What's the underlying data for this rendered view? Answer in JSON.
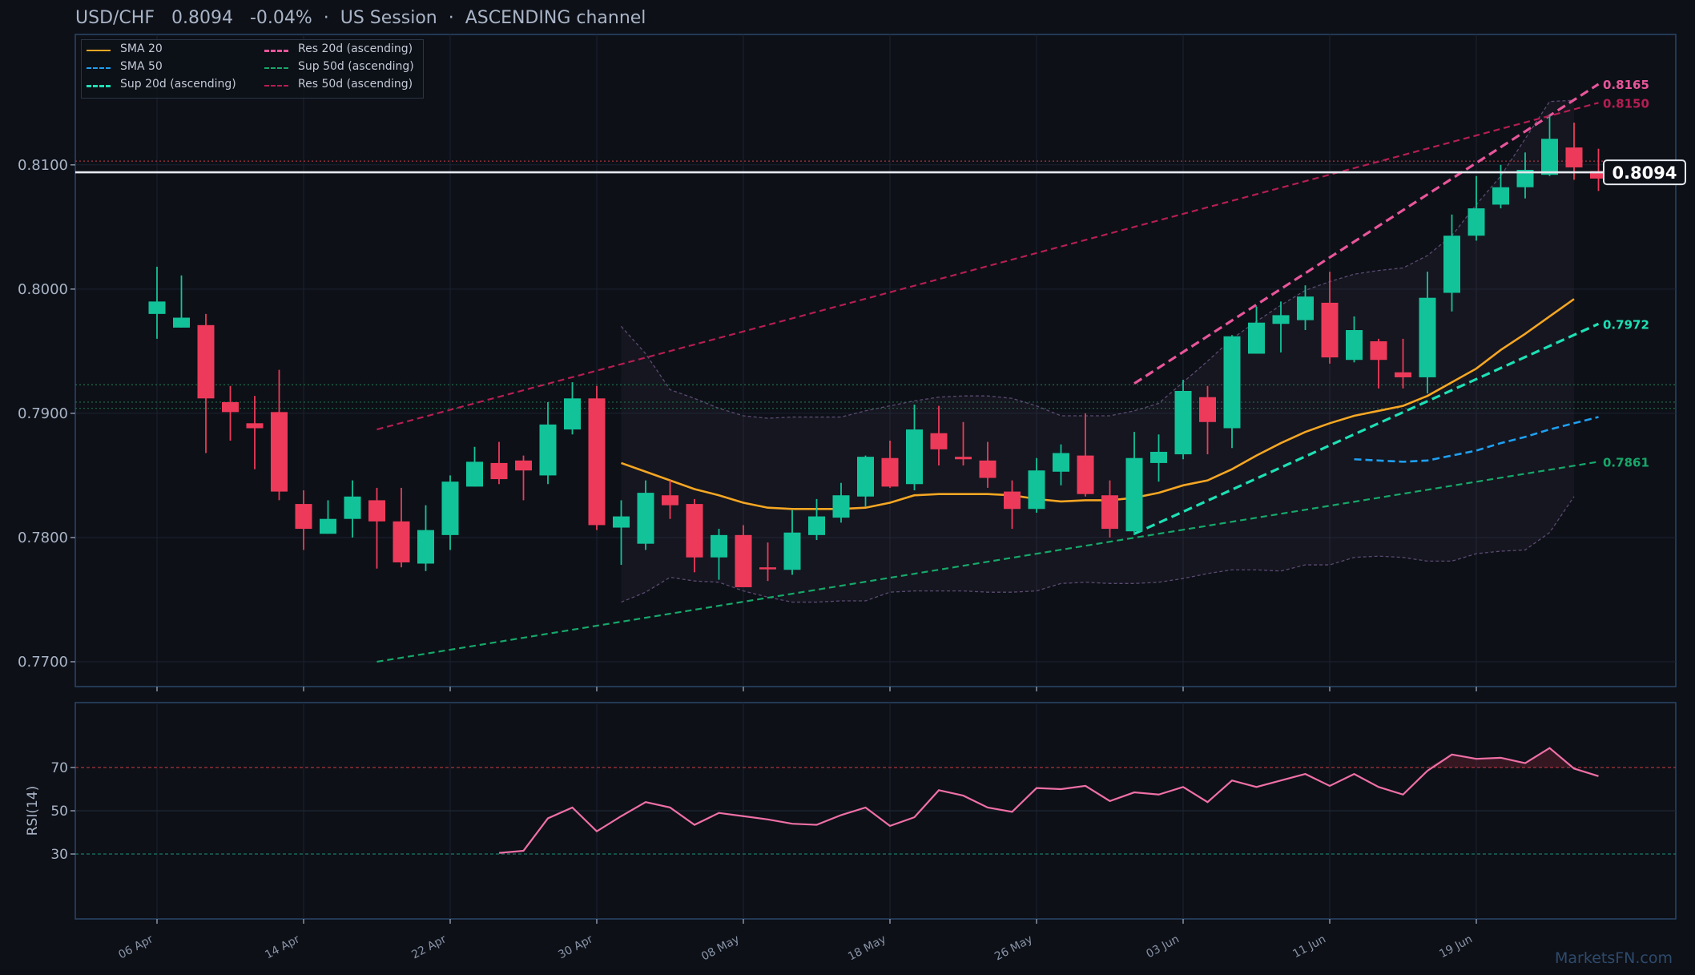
{
  "header": {
    "symbol": "USD/CHF",
    "price": "0.8094",
    "change": "-0.04%",
    "session": "US Session",
    "channel": "ASCENDING channel"
  },
  "watermark": "MarketsFN.com",
  "legend": [
    {
      "label": "SMA 20",
      "color": "#f5a623",
      "style": "solid"
    },
    {
      "label": "SMA 50",
      "color": "#1e9ff2",
      "style": "dashed"
    },
    {
      "label": "Sup 20d (ascending)",
      "color": "#1de0b5",
      "style": "dashed"
    },
    {
      "label": "Res 20d (ascending)",
      "color": "#e8559a",
      "style": "dashed"
    },
    {
      "label": "Sup 50d (ascending)",
      "color": "#16a86a",
      "style": "dashed"
    },
    {
      "label": "Res 50d (ascending)",
      "color": "#b51e52",
      "style": "dashed"
    }
  ],
  "colors": {
    "up": "#12c39a",
    "down": "#ee3a5a",
    "background": "#0d1017",
    "axis": "#2b4668",
    "text": "#a9b4c6"
  },
  "chart_data": {
    "type": "candlestick",
    "x_ticks": [
      "06 Apr",
      "14 Apr",
      "22 Apr",
      "30 Apr",
      "08 May",
      "18 May",
      "26 May",
      "03 Jun",
      "11 Jun",
      "19 Jun"
    ],
    "x_tick_index": [
      0,
      6,
      12,
      18,
      24,
      30,
      36,
      42,
      48,
      54
    ],
    "ylim": [
      0.768,
      0.8205
    ],
    "y_ticks": [
      "0.7700",
      "0.7800",
      "0.7900",
      "0.8000",
      "0.8100"
    ],
    "y_tick_values": [
      0.77,
      0.78,
      0.79,
      0.8,
      0.81
    ],
    "last_price": 0.8094,
    "last_price_label": "0.8094",
    "horizontal_levels": [
      {
        "value": 0.8103,
        "color": "#a8333d",
        "style": "dotted"
      },
      {
        "value": 0.7923,
        "color": "#1f6e4a",
        "style": "dotted"
      },
      {
        "value": 0.7909,
        "color": "#1f6e4a",
        "style": "dotted"
      },
      {
        "value": 0.7904,
        "color": "#1f6e4a",
        "style": "dotted"
      }
    ],
    "candles": [
      {
        "o": 0.798,
        "h": 0.8018,
        "l": 0.796,
        "c": 0.799
      },
      {
        "o": 0.7969,
        "h": 0.8011,
        "l": 0.7969,
        "c": 0.7977
      },
      {
        "o": 0.7971,
        "h": 0.798,
        "l": 0.7868,
        "c": 0.7912
      },
      {
        "o": 0.7909,
        "h": 0.7922,
        "l": 0.7878,
        "c": 0.7901
      },
      {
        "o": 0.7892,
        "h": 0.7914,
        "l": 0.7855,
        "c": 0.7888
      },
      {
        "o": 0.7901,
        "h": 0.7935,
        "l": 0.783,
        "c": 0.7837
      },
      {
        "o": 0.7827,
        "h": 0.7838,
        "l": 0.779,
        "c": 0.7807
      },
      {
        "o": 0.7803,
        "h": 0.783,
        "l": 0.7803,
        "c": 0.7815
      },
      {
        "o": 0.7815,
        "h": 0.7846,
        "l": 0.78,
        "c": 0.7833
      },
      {
        "o": 0.783,
        "h": 0.784,
        "l": 0.7775,
        "c": 0.7813
      },
      {
        "o": 0.7813,
        "h": 0.784,
        "l": 0.7776,
        "c": 0.778
      },
      {
        "o": 0.7779,
        "h": 0.7826,
        "l": 0.7773,
        "c": 0.7806
      },
      {
        "o": 0.7802,
        "h": 0.785,
        "l": 0.779,
        "c": 0.7845
      },
      {
        "o": 0.7841,
        "h": 0.7873,
        "l": 0.7841,
        "c": 0.7861
      },
      {
        "o": 0.786,
        "h": 0.7877,
        "l": 0.7843,
        "c": 0.7847
      },
      {
        "o": 0.7862,
        "h": 0.7866,
        "l": 0.783,
        "c": 0.7854
      },
      {
        "o": 0.785,
        "h": 0.7909,
        "l": 0.7843,
        "c": 0.7891
      },
      {
        "o": 0.7887,
        "h": 0.7925,
        "l": 0.7883,
        "c": 0.7912
      },
      {
        "o": 0.7912,
        "h": 0.7922,
        "l": 0.7806,
        "c": 0.781
      },
      {
        "o": 0.7808,
        "h": 0.783,
        "l": 0.7778,
        "c": 0.7817
      },
      {
        "o": 0.7795,
        "h": 0.7846,
        "l": 0.779,
        "c": 0.7836
      },
      {
        "o": 0.7834,
        "h": 0.7846,
        "l": 0.7815,
        "c": 0.7826
      },
      {
        "o": 0.7827,
        "h": 0.7831,
        "l": 0.7772,
        "c": 0.7784
      },
      {
        "o": 0.7784,
        "h": 0.7807,
        "l": 0.7766,
        "c": 0.7802
      },
      {
        "o": 0.7802,
        "h": 0.781,
        "l": 0.7761,
        "c": 0.776
      },
      {
        "o": 0.7776,
        "h": 0.7796,
        "l": 0.7765,
        "c": 0.7775
      },
      {
        "o": 0.7774,
        "h": 0.7822,
        "l": 0.777,
        "c": 0.7804
      },
      {
        "o": 0.7802,
        "h": 0.7831,
        "l": 0.7798,
        "c": 0.7817
      },
      {
        "o": 0.7816,
        "h": 0.7844,
        "l": 0.7812,
        "c": 0.7834
      },
      {
        "o": 0.7833,
        "h": 0.7866,
        "l": 0.7825,
        "c": 0.7865
      },
      {
        "o": 0.7864,
        "h": 0.7878,
        "l": 0.784,
        "c": 0.7841
      },
      {
        "o": 0.7843,
        "h": 0.7907,
        "l": 0.7838,
        "c": 0.7887
      },
      {
        "o": 0.7884,
        "h": 0.7906,
        "l": 0.7858,
        "c": 0.7871
      },
      {
        "o": 0.7865,
        "h": 0.7893,
        "l": 0.7858,
        "c": 0.7863
      },
      {
        "o": 0.7862,
        "h": 0.7877,
        "l": 0.784,
        "c": 0.7848
      },
      {
        "o": 0.7837,
        "h": 0.7846,
        "l": 0.7807,
        "c": 0.7823
      },
      {
        "o": 0.7823,
        "h": 0.7864,
        "l": 0.782,
        "c": 0.7854
      },
      {
        "o": 0.7853,
        "h": 0.7875,
        "l": 0.7842,
        "c": 0.7868
      },
      {
        "o": 0.7866,
        "h": 0.79,
        "l": 0.7833,
        "c": 0.7835
      },
      {
        "o": 0.7834,
        "h": 0.7846,
        "l": 0.78,
        "c": 0.7807
      },
      {
        "o": 0.7805,
        "h": 0.7885,
        "l": 0.7802,
        "c": 0.7864
      },
      {
        "o": 0.786,
        "h": 0.7883,
        "l": 0.7845,
        "c": 0.7869
      },
      {
        "o": 0.7867,
        "h": 0.7927,
        "l": 0.7863,
        "c": 0.7918
      },
      {
        "o": 0.7913,
        "h": 0.7922,
        "l": 0.7867,
        "c": 0.7893
      },
      {
        "o": 0.7888,
        "h": 0.7963,
        "l": 0.7872,
        "c": 0.7962
      },
      {
        "o": 0.7948,
        "h": 0.7986,
        "l": 0.7948,
        "c": 0.7973
      },
      {
        "o": 0.7972,
        "h": 0.799,
        "l": 0.7949,
        "c": 0.7979
      },
      {
        "o": 0.7975,
        "h": 0.8003,
        "l": 0.7967,
        "c": 0.7994
      },
      {
        "o": 0.7989,
        "h": 0.8014,
        "l": 0.794,
        "c": 0.7945
      },
      {
        "o": 0.7943,
        "h": 0.7978,
        "l": 0.7941,
        "c": 0.7967
      },
      {
        "o": 0.7958,
        "h": 0.796,
        "l": 0.792,
        "c": 0.7943
      },
      {
        "o": 0.7933,
        "h": 0.796,
        "l": 0.792,
        "c": 0.7929
      },
      {
        "o": 0.7929,
        "h": 0.8014,
        "l": 0.7916,
        "c": 0.7993
      },
      {
        "o": 0.7997,
        "h": 0.806,
        "l": 0.7982,
        "c": 0.8043
      },
      {
        "o": 0.8043,
        "h": 0.8091,
        "l": 0.8039,
        "c": 0.8065
      },
      {
        "o": 0.8068,
        "h": 0.81,
        "l": 0.8065,
        "c": 0.8082
      },
      {
        "o": 0.8082,
        "h": 0.811,
        "l": 0.8073,
        "c": 0.8096
      },
      {
        "o": 0.8092,
        "h": 0.814,
        "l": 0.8091,
        "c": 0.8121
      },
      {
        "o": 0.8114,
        "h": 0.8134,
        "l": 0.8088,
        "c": 0.8098
      },
      {
        "o": 0.8095,
        "h": 0.8113,
        "l": 0.8079,
        "c": 0.8089
      }
    ],
    "sma20": {
      "start": 19,
      "values": [
        0.786,
        0.7853,
        0.7846,
        0.7839,
        0.7834,
        0.7828,
        0.7824,
        0.7823,
        0.7823,
        0.7823,
        0.7824,
        0.7828,
        0.7834,
        0.7835,
        0.7835,
        0.7835,
        0.7834,
        0.7831,
        0.7829,
        0.783,
        0.783,
        0.7832,
        0.7836,
        0.7842,
        0.7846,
        0.7855,
        0.7866,
        0.7876,
        0.7885,
        0.7892,
        0.7898,
        0.7902,
        0.7906,
        0.7914,
        0.7925,
        0.7936,
        0.7951,
        0.7964,
        0.7978,
        0.7992
      ]
    },
    "sma50": {
      "start": 49,
      "values": [
        0.7863,
        0.7862,
        0.7861,
        0.7862,
        0.7866,
        0.787,
        0.7876,
        0.7881,
        0.7887,
        0.7892,
        0.7897
      ]
    },
    "bands_start": 19,
    "bb_upper": [
      0.797,
      0.7948,
      0.7919,
      0.7912,
      0.7904,
      0.7898,
      0.7896,
      0.7897,
      0.7897,
      0.7897,
      0.7902,
      0.7906,
      0.791,
      0.7913,
      0.7914,
      0.7914,
      0.7912,
      0.7906,
      0.7898,
      0.7898,
      0.7898,
      0.7902,
      0.7908,
      0.7925,
      0.7942,
      0.796,
      0.7974,
      0.7987,
      0.7999,
      0.8006,
      0.8012,
      0.8015,
      0.8017,
      0.8027,
      0.8043,
      0.8068,
      0.8091,
      0.8121,
      0.8151,
      0.8152
    ],
    "bb_lower": [
      0.7748,
      0.7756,
      0.7768,
      0.7765,
      0.7764,
      0.7757,
      0.7752,
      0.7748,
      0.7748,
      0.7749,
      0.7749,
      0.7756,
      0.7757,
      0.7757,
      0.7757,
      0.7756,
      0.7756,
      0.7757,
      0.7763,
      0.7764,
      0.7763,
      0.7763,
      0.7764,
      0.7767,
      0.7771,
      0.7774,
      0.7774,
      0.7773,
      0.7778,
      0.7778,
      0.7784,
      0.7785,
      0.7784,
      0.7781,
      0.7781,
      0.7787,
      0.7789,
      0.779,
      0.7804,
      0.7833
    ],
    "trendlines": [
      {
        "name": "Res 20d (ascending)",
        "x0": 40,
        "y0": 0.7924,
        "x1": 59,
        "y1": 0.8165,
        "color": "#e8559a",
        "label": "0.8165",
        "width": 3.2
      },
      {
        "name": "Res 50d (ascending)",
        "x0": 9,
        "y0": 0.7887,
        "x1": 59,
        "y1": 0.815,
        "color": "#b51e52",
        "label": "0.8150",
        "width": 2.2
      },
      {
        "name": "Sup 20d (ascending)",
        "x0": 40,
        "y0": 0.7803,
        "x1": 59,
        "y1": 0.7972,
        "color": "#1de0b5",
        "label": "0.7972",
        "width": 3.2
      },
      {
        "name": "Sup 50d (ascending)",
        "x0": 9,
        "y0": 0.77,
        "x1": 59,
        "y1": 0.7861,
        "color": "#16a86a",
        "label": "0.7861",
        "width": 2.2
      }
    ],
    "rsi": {
      "label": "RSI(14)",
      "ylim": [
        0,
        100
      ],
      "y_ticks": [
        30,
        50,
        70
      ],
      "overbought": 70,
      "oversold": 30,
      "start": 14,
      "values": [
        30.5,
        31.5,
        46.5,
        51.5,
        40.5,
        47.5,
        54.0,
        51.5,
        43.5,
        49.0,
        47.5,
        46.0,
        44.0,
        43.5,
        48.0,
        51.5,
        43.0,
        47.0,
        59.5,
        57.0,
        51.5,
        49.5,
        60.5,
        60.0,
        61.5,
        54.5,
        58.5,
        57.5,
        61.0,
        54.0,
        64.0,
        61.0,
        64.0,
        67.0,
        61.5,
        67.0,
        61.0,
        57.5,
        68.5,
        76.0,
        74.0,
        74.5,
        72.0,
        79.0,
        69.5,
        66.0
      ]
    }
  }
}
